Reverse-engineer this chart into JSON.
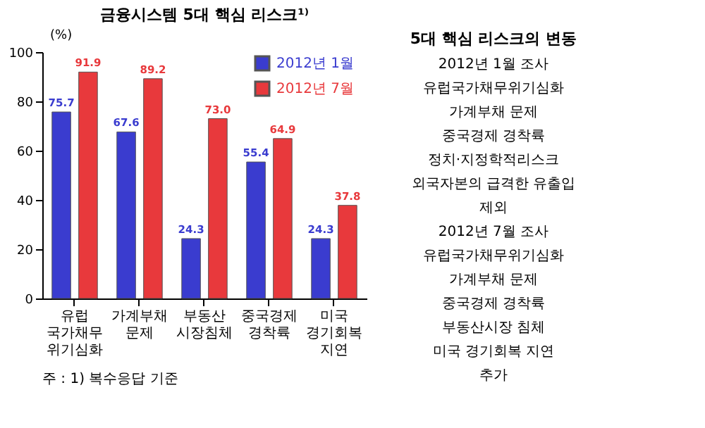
{
  "chart_data": [
    {
      "type": "bar",
      "title": "금융시스템 5대 핵심 리스크¹⁾",
      "ylabel": "(%)",
      "categories": [
        "유럽 국가채무 위기심화",
        "가계부채 문제",
        "부동산 시장침체",
        "중국경제 경착륙",
        "미국 경기회복 지연"
      ],
      "series": [
        {
          "name": "2012년 1월",
          "color": "#3a3ccf",
          "values": [
            75.7,
            67.6,
            24.3,
            55.4,
            24.3
          ]
        },
        {
          "name": "2012년 7월",
          "color": "#e8393c",
          "values": [
            91.9,
            89.2,
            73.0,
            64.9,
            37.8
          ]
        }
      ],
      "value_labels": [
        [
          "75.7",
          "67.6",
          "24.3",
          "55.4",
          "24.3"
        ],
        [
          "91.9",
          "89.2",
          "73.0",
          "64.9",
          "37.8"
        ]
      ],
      "ylim": [
        0,
        100
      ],
      "yticks": [
        0,
        20,
        40,
        60,
        80,
        100
      ],
      "grid": false,
      "legend": "top right",
      "annotations": [
        "주 : 1) 복수응답 기준"
      ]
    },
    {
      "type": "other",
      "title": "5대 핵심 리스크의 변동",
      "annotations": [
        "2012년 1월 조사",
        "유럽국가채무위기심화",
        "가계부채 문제",
        "중국경제 경착륙",
        "정치·지정학적리스크",
        "외국자본의 급격한 유출입",
        "제외",
        "2012년 7월 조사",
        "유럽국가채무위기심화",
        "가계부채 문제",
        "중국경제 경착륙",
        "부동산시장 침체",
        "미국 경기회복 지연",
        "추가"
      ]
    }
  ]
}
